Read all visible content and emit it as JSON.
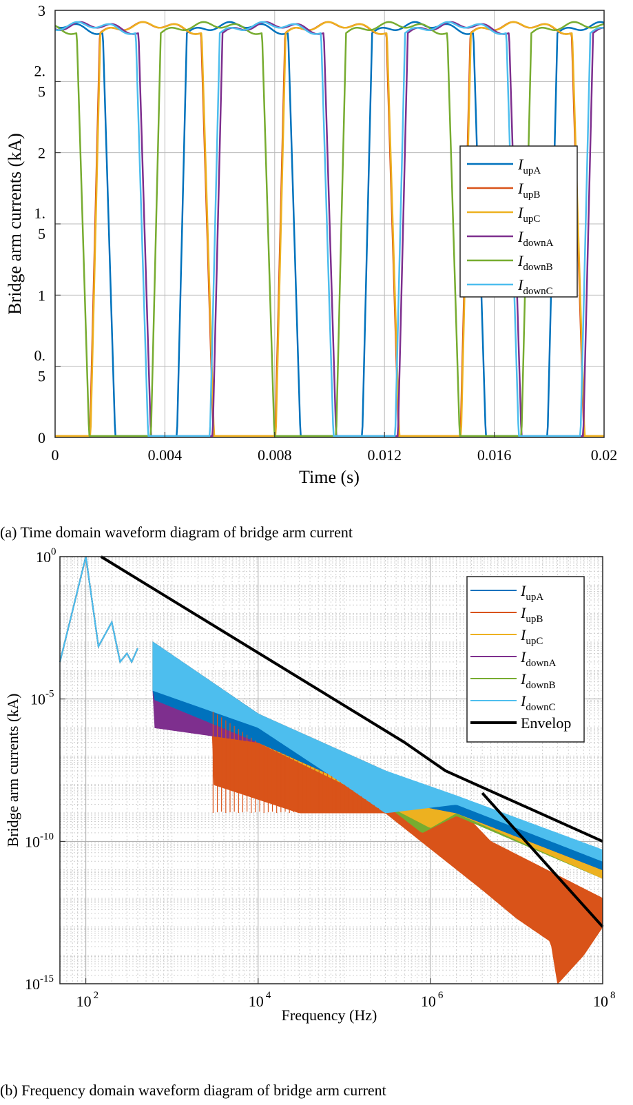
{
  "chart_data": [
    {
      "type": "line",
      "title": "",
      "caption": "(a) Time domain waveform diagram of bridge arm current",
      "xlabel": "Time (s)",
      "ylabel": "Bridge arm currents (kA)",
      "xlim": [
        0,
        0.02
      ],
      "ylim": [
        0,
        3
      ],
      "grid": true,
      "legend_position": "right",
      "xticks": [
        {
          "value": 0,
          "label": "0"
        },
        {
          "value": 0.004,
          "label": "0.004"
        },
        {
          "value": 0.008,
          "label": "0.008"
        },
        {
          "value": 0.012,
          "label": "0.012"
        },
        {
          "value": 0.016,
          "label": "0.016"
        },
        {
          "value": 0.02,
          "label": "0.02"
        }
      ],
      "yticks": [
        {
          "value": 0,
          "label": [
            "0"
          ]
        },
        {
          "value": 0.5,
          "label": [
            "0.",
            "5"
          ]
        },
        {
          "value": 1,
          "label": [
            "1"
          ]
        },
        {
          "value": 1.5,
          "label": [
            "1.",
            "5"
          ]
        },
        {
          "value": 2,
          "label": [
            "2"
          ]
        },
        {
          "value": 2.5,
          "label": [
            "2.",
            "5"
          ]
        },
        {
          "value": 3,
          "label": [
            "3"
          ]
        }
      ],
      "series_model": {
        "kind": "trapezoid",
        "period_s": 0.00675,
        "peak_kA": 2.9,
        "ripple_kA": 0.06,
        "rise_s": 0.00036,
        "fall_s": 0.00045,
        "samples": 800
      },
      "series": [
        {
          "name": "upA",
          "label": {
            "main": "I",
            "sub": "upA"
          },
          "color": "#0072BD",
          "high_start_s": 0.0183
        },
        {
          "name": "upB",
          "label": {
            "main": "I",
            "sub": "upB"
          },
          "color": "#D95319",
          "high_start_s": 0.00163
        },
        {
          "name": "upC",
          "label": {
            "main": "I",
            "sub": "upC"
          },
          "color": "#EDB120",
          "high_start_s": 0.0084
        },
        {
          "name": "downA",
          "label": {
            "main": "I",
            "sub": "downA"
          },
          "color": "#7E2F8E",
          "high_start_s": 0.0061
        },
        {
          "name": "downB",
          "label": {
            "main": "I",
            "sub": "downB"
          },
          "color": "#77AC30",
          "high_start_s": 0.00385
        },
        {
          "name": "downC",
          "label": {
            "main": "I",
            "sub": "downC"
          },
          "color": "#4DBEEE",
          "high_start_s": 0.0195
        }
      ]
    },
    {
      "type": "line",
      "title": "",
      "caption": "(b) Frequency domain waveform diagram of bridge arm current",
      "xlabel": "Frequency (Hz)",
      "ylabel": "Bridge arm currents (kA)",
      "xscale": "log",
      "yscale": "log",
      "xlim": [
        50,
        100000000
      ],
      "ylim": [
        1e-15,
        1
      ],
      "grid": true,
      "legend_position": "top-right",
      "xticks": [
        {
          "value": 100,
          "base": "10",
          "exp": "2"
        },
        {
          "value": 10000,
          "base": "10",
          "exp": "4"
        },
        {
          "value": 1000000,
          "base": "10",
          "exp": "6"
        },
        {
          "value": 100000000,
          "base": "10",
          "exp": "8"
        }
      ],
      "yticks": [
        {
          "value": 1,
          "base": "10",
          "exp": "0"
        },
        {
          "value": 1e-05,
          "base": "10",
          "exp": "-5"
        },
        {
          "value": 1e-10,
          "base": "10",
          "exp": "-10"
        },
        {
          "value": 1e-15,
          "base": "10",
          "exp": "-15"
        }
      ],
      "spectrum_model": {
        "fundamental_hz": 100,
        "fundamental_amp_kA": 1,
        "low_order_peaks": [
          {
            "f": 200,
            "a": 0.005
          },
          {
            "f": 400,
            "a": 0.0006
          },
          {
            "f": 600,
            "a": 0.0002
          }
        ],
        "series_pattern": [
          {
            "f": 50,
            "a": 0.0002
          },
          {
            "f": 100,
            "a": 1
          },
          {
            "f": 140,
            "a": 0.0007
          },
          {
            "f": 200,
            "a": 0.005
          },
          {
            "f": 250,
            "a": 0.0002
          },
          {
            "f": 300,
            "a": 0.0004
          },
          {
            "f": 340,
            "a": 0.0002
          },
          {
            "f": 400,
            "a": 0.0006
          }
        ]
      },
      "series": [
        {
          "name": "upA",
          "label": {
            "main": "I",
            "sub": "upA"
          },
          "color": "#0072BD",
          "upper": [
            [
              600,
              0.001
            ],
            [
              10000,
              3e-06
            ],
            [
              300000,
              1e-08
            ],
            [
              2000000,
              3e-09
            ],
            [
              100000000,
              4e-11
            ]
          ],
          "lower": [
            [
              600,
              1e-05
            ],
            [
              10000,
              3e-07
            ],
            [
              300000,
              3e-09
            ],
            [
              2000000,
              1e-09
            ],
            [
              100000000,
              1e-11
            ]
          ]
        },
        {
          "name": "upB",
          "label": {
            "main": "I",
            "sub": "upB"
          },
          "color": "#D95319",
          "upper": [
            [
              600,
              0.001
            ],
            [
              10000,
              3e-06
            ],
            [
              300000,
              3e-08
            ],
            [
              3000000,
              5e-10
            ],
            [
              5000000,
              1e-10
            ],
            [
              100000000,
              1e-12
            ]
          ],
          "lower": [
            [
              3000,
              1e-08
            ],
            [
              30000,
              1e-09
            ],
            [
              300000,
              1e-09
            ],
            [
              4000000,
              2e-12
            ],
            [
              10000000,
              2e-13
            ],
            [
              25000000,
              3e-14
            ],
            [
              30000000,
              1e-15
            ],
            [
              60000000,
              1e-14
            ],
            [
              100000000,
              1e-13
            ]
          ]
        },
        {
          "name": "upC",
          "label": {
            "main": "I",
            "sub": "upC"
          },
          "color": "#EDB120",
          "upper": [
            [
              600,
              0.001
            ],
            [
              10000,
              3e-06
            ],
            [
              300000,
              2e-08
            ],
            [
              2000000,
              2e-09
            ],
            [
              100000000,
              2e-11
            ]
          ],
          "lower": [
            [
              600,
              1e-05
            ],
            [
              10000,
              3e-07
            ],
            [
              300000,
              2e-09
            ],
            [
              1000000,
              3e-10
            ],
            [
              2000000,
              1e-09
            ],
            [
              100000000,
              5e-12
            ]
          ]
        },
        {
          "name": "downA",
          "label": {
            "main": "I",
            "sub": "downA"
          },
          "color": "#7E2F8E",
          "upper": [
            [
              600,
              0.001
            ],
            [
              10000,
              3e-06
            ],
            [
              300000,
              2e-08
            ],
            [
              2000000,
              3e-09
            ],
            [
              100000000,
              3e-11
            ]
          ],
          "lower": [
            [
              600,
              1e-06
            ],
            [
              10000,
              3e-07
            ],
            [
              300000,
              3e-09
            ],
            [
              2000000,
              1e-09
            ],
            [
              100000000,
              1e-11
            ]
          ]
        },
        {
          "name": "downB",
          "label": {
            "main": "I",
            "sub": "downB"
          },
          "color": "#77AC30",
          "upper": [
            [
              600,
              0.001
            ],
            [
              10000,
              3e-06
            ],
            [
              300000,
              2e-08
            ],
            [
              2000000,
              2e-09
            ],
            [
              100000000,
              1e-11
            ]
          ],
          "lower": [
            [
              600,
              1e-05
            ],
            [
              10000,
              3e-07
            ],
            [
              300000,
              2e-09
            ],
            [
              800000,
              2e-10
            ],
            [
              2000000,
              8e-10
            ],
            [
              100000000,
              5e-12
            ]
          ]
        },
        {
          "name": "downC",
          "label": {
            "main": "I",
            "sub": "downC"
          },
          "color": "#4DBEEE",
          "upper": [
            [
              600,
              0.001
            ],
            [
              10000,
              3e-06
            ],
            [
              300000,
              3e-08
            ],
            [
              2000000,
              4e-09
            ],
            [
              100000000,
              5e-11
            ]
          ],
          "lower": [
            [
              600,
              2e-05
            ],
            [
              10000,
              1e-06
            ],
            [
              100000,
              1e-08
            ],
            [
              300000,
              1e-09
            ],
            [
              2000000,
              2e-09
            ],
            [
              100000000,
              2e-11
            ]
          ]
        }
      ],
      "envelopes": [
        {
          "name": "Envelop",
          "color": "#000000",
          "points": [
            [
              150,
              1
            ],
            [
              500000,
              3e-07
            ],
            [
              1500000,
              3e-08
            ],
            [
              100000000,
              1e-10
            ]
          ]
        },
        {
          "name": "Envelop",
          "color": "#000000",
          "points": [
            [
              4000000,
              5e-09
            ],
            [
              100000000,
              1e-13
            ]
          ]
        }
      ],
      "legend": [
        {
          "main": "I",
          "sub": "upA",
          "color": "#0072BD",
          "width": 2
        },
        {
          "main": "I",
          "sub": "upB",
          "color": "#D95319",
          "width": 2
        },
        {
          "main": "I",
          "sub": "upC",
          "color": "#EDB120",
          "width": 2
        },
        {
          "main": "I",
          "sub": "downA",
          "color": "#7E2F8E",
          "width": 2
        },
        {
          "main": "I",
          "sub": "downB",
          "color": "#77AC30",
          "width": 2
        },
        {
          "main": "I",
          "sub": "downC",
          "color": "#4DBEEE",
          "width": 2
        },
        {
          "main": "Envelop",
          "sub": "",
          "color": "#000000",
          "width": 4
        }
      ]
    }
  ]
}
